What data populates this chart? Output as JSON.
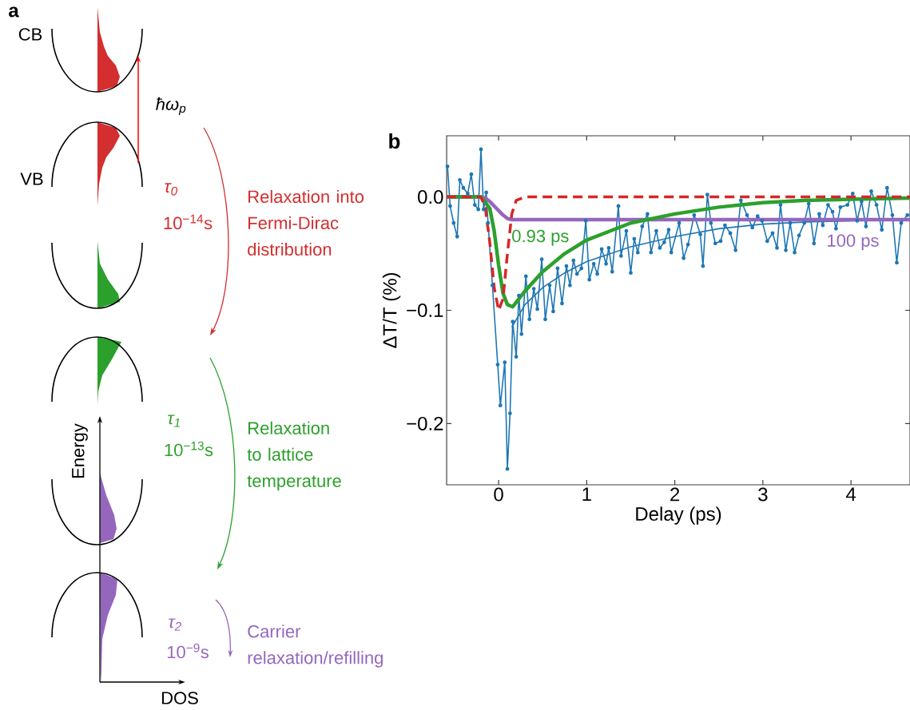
{
  "chart_data": [
    {
      "type": "other",
      "title": "a",
      "annotations": [
        "CB",
        "VB",
        "ħω$_{p}$",
        "τ$_{0}$",
        "10$^{−14}$s",
        "Relaxation into Fermi-Dirac distribution",
        "τ$_{1}$",
        "10$^{−13}$s",
        "Relaxation to lattice temperature",
        "τ$_{2}$",
        "10$^{−9}$s",
        "Carrier relaxation/refilling",
        "Energy",
        "DOS"
      ]
    },
    {
      "type": "line",
      "title": "b",
      "xlabel": "Delay (ps)",
      "ylabel": "ΔT/T (%)",
      "xlim": [
        -0.59,
        4.67
      ],
      "ylim": [
        -0.254,
        0.054
      ],
      "xticks": [
        0,
        1,
        2,
        3,
        4
      ],
      "yticks": [
        {
          "value": 0,
          "label": "0.0"
        },
        {
          "value": -0.1,
          "label": "−0.1"
        },
        {
          "value": -0.2,
          "label": "−0.2"
        }
      ],
      "series": [
        {
          "color": "#1f77b4",
          "marker": "circle",
          "x": [
            -0.58,
            -0.55,
            -0.51,
            -0.47,
            -0.44,
            -0.4,
            -0.35,
            -0.31,
            -0.27,
            -0.23,
            -0.2,
            -0.17,
            -0.14,
            -0.12,
            -0.07,
            -0.01,
            0.02,
            0.07,
            0.1,
            0.13,
            0.16,
            0.2,
            0.23,
            0.26,
            0.31,
            0.35,
            0.4,
            0.44,
            0.49,
            0.53,
            0.58,
            0.62,
            0.67,
            0.72,
            0.77,
            0.81,
            0.85,
            0.89,
            0.94,
            0.99,
            1.03,
            1.08,
            1.12,
            1.17,
            1.22,
            1.25,
            1.29,
            1.36,
            1.39,
            1.45,
            1.5,
            1.54,
            1.58,
            1.63,
            1.69,
            1.73,
            1.79,
            1.83,
            1.88,
            1.93,
            1.96,
            2.05,
            2.1,
            2.15,
            2.22,
            2.29,
            2.32,
            2.37,
            2.41,
            2.46,
            2.52,
            2.57,
            2.63,
            2.69,
            2.75,
            2.82,
            2.88,
            2.94,
            2.99,
            3.05,
            3.11,
            3.16,
            3.2,
            3.26,
            3.31,
            3.36,
            3.41,
            3.47,
            3.52,
            3.58,
            3.64,
            3.68,
            3.74,
            3.79,
            3.83,
            3.88,
            3.96,
            4.02,
            4.07,
            4.12,
            4.17,
            4.23,
            4.29,
            4.35,
            4.41,
            4.47,
            4.52,
            4.57,
            4.64
          ],
          "values": [
            0.027,
            -0.008,
            -0.023,
            -0.035,
            0.015,
            0.008,
            0.003,
            0.02,
            -0.007,
            -0.011,
            0.042,
            -0.011,
            0.004,
            -0.023,
            -0.078,
            -0.148,
            -0.184,
            -0.146,
            -0.24,
            -0.191,
            -0.11,
            -0.141,
            -0.087,
            -0.121,
            -0.07,
            -0.108,
            -0.081,
            -0.099,
            -0.055,
            -0.108,
            -0.078,
            -0.101,
            -0.063,
            -0.094,
            -0.061,
            -0.078,
            -0.056,
            -0.068,
            -0.063,
            -0.021,
            -0.073,
            -0.059,
            -0.068,
            -0.046,
            -0.059,
            -0.045,
            -0.066,
            -0.008,
            -0.052,
            -0.03,
            -0.067,
            -0.037,
            -0.049,
            -0.026,
            -0.015,
            -0.049,
            -0.03,
            -0.045,
            -0.04,
            -0.029,
            -0.049,
            -0.023,
            -0.054,
            -0.042,
            -0.016,
            -0.033,
            -0.061,
            0.002,
            -0.023,
            -0.041,
            -0.039,
            -0.025,
            -0.032,
            -0.047,
            -0.003,
            -0.016,
            -0.027,
            -0.017,
            -0.021,
            -0.039,
            -0.032,
            -0.045,
            -0.007,
            -0.047,
            -0.023,
            -0.049,
            -0.034,
            -0.023,
            -0.006,
            -0.041,
            -0.015,
            -0.025,
            -0.007,
            -0.013,
            -0.028,
            -0.009,
            -0.007,
            0.003,
            -0.021,
            -0.004,
            -0.026,
            0.005,
            -0.007,
            -0.029,
            0.008,
            -0.016,
            -0.058,
            -0.023,
            -0.016
          ]
        },
        {
          "color": "#1f77b4",
          "x": [
            0.15,
            0.3,
            0.5,
            0.75,
            1,
            1.5,
            2,
            2.5,
            3,
            3.5,
            4,
            4.67
          ],
          "values": [
            -0.115,
            -0.095,
            -0.08,
            -0.067,
            -0.057,
            -0.044,
            -0.035,
            -0.028,
            -0.024,
            -0.022,
            null,
            -0.02
          ]
        },
        {
          "name": "100 ps",
          "color": "#9467bd",
          "x": [
            -0.59,
            -0.2,
            -0.15,
            -0.1,
            -0.05,
            0,
            0.05,
            0.1,
            0.15,
            4.67
          ],
          "values": [
            0,
            0,
            -0.001,
            -0.004,
            -0.008,
            -0.012,
            -0.016,
            -0.019,
            -0.02,
            -0.02
          ]
        },
        {
          "name": "0.93 ps",
          "color": "#2ca02c",
          "x": [
            -0.59,
            -0.2,
            -0.1,
            -0.05,
            0,
            0.05,
            0.1,
            0.16,
            0.3,
            0.5,
            0.75,
            1,
            1.5,
            2,
            2.5,
            3,
            3.5,
            4,
            4.67
          ],
          "values": [
            0,
            0,
            -0.01,
            -0.03,
            -0.06,
            -0.085,
            -0.095,
            -0.097,
            -0.083,
            -0.066,
            -0.05,
            -0.038,
            -0.023,
            -0.015,
            -0.009,
            -0.005,
            -0.003,
            -0.002,
            -0.001
          ]
        },
        {
          "color": "#d62728",
          "line_style": "dashed",
          "x": [
            -0.59,
            -0.2,
            -0.15,
            -0.1,
            -0.05,
            0,
            0.05,
            0.1,
            0.15,
            0.2,
            0.3,
            4.67
          ],
          "values": [
            0,
            0,
            -0.01,
            -0.04,
            -0.08,
            -0.1,
            -0.09,
            -0.05,
            -0.015,
            -0.003,
            0,
            0
          ]
        }
      ]
    }
  ]
}
